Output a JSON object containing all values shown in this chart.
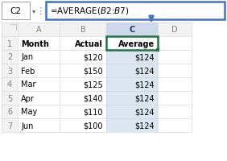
{
  "formula_bar_label": "C2",
  "formula": "=AVERAGE($B$2:$B$7)",
  "header_row": [
    "Month",
    "Actual",
    "Average"
  ],
  "rows": [
    [
      "Jan",
      "$120",
      "$124"
    ],
    [
      "Feb",
      "$150",
      "$124"
    ],
    [
      "Mar",
      "$125",
      "$124"
    ],
    [
      "Apr",
      "$140",
      "$124"
    ],
    [
      "May",
      "$110",
      "$124"
    ],
    [
      "Jun",
      "$100",
      "$124"
    ]
  ],
  "row_numbers": [
    "1",
    "2",
    "3",
    "4",
    "5",
    "6",
    "7"
  ],
  "col_labels": [
    "A",
    "B",
    "C",
    "D"
  ],
  "bg_white": "#ffffff",
  "border_selected_green": "#217346",
  "formula_bar_border": "#4472c4",
  "grid_color": "#d0d0d0",
  "text_color": "#000000",
  "row_col_header_bg": "#f2f2f2",
  "row_col_header_fg": "#7f7f7f",
  "col_c_header_bg": "#cdd9ea",
  "col_c_cell_bg": "#dce6f1",
  "col_c_header_fg": "#17375e",
  "arrow_color": "#4472c4",
  "namebox_border": "#a0a0a0",
  "formula_font_size": 7.5,
  "cell_font_size": 7.0,
  "header_font_size": 7.0,
  "figw": 2.82,
  "figh": 2.01,
  "dpi": 100
}
